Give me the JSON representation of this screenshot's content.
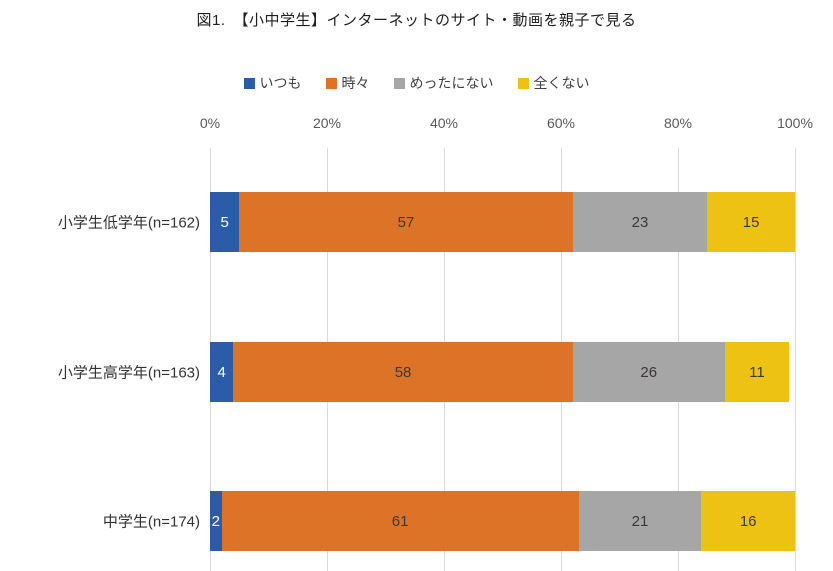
{
  "title": "図1.　【小中学生】インターネットのサイト・動画を親子で見る",
  "chart_data": {
    "type": "bar",
    "variant": "horizontal-stacked",
    "title": "図1.　【小中学生】インターネットのサイト・動画を親子で見る",
    "categories": [
      "小学生低学年(n=162)",
      "小学生高学年(n=163)",
      "中学生(n=174)"
    ],
    "series": [
      {
        "name": "いつも",
        "color": "#2b5ca8",
        "label_color": "#ffffff",
        "values": [
          5,
          4,
          2
        ]
      },
      {
        "name": "時々",
        "color": "#dc7327",
        "label_color": "#3b3838",
        "values": [
          57,
          58,
          61
        ]
      },
      {
        "name": "めったにない",
        "color": "#a6a6a6",
        "label_color": "#3b3838",
        "values": [
          23,
          26,
          21
        ]
      },
      {
        "name": "全くない",
        "color": "#eec213",
        "label_color": "#3b3838",
        "values": [
          15,
          11,
          16
        ]
      }
    ],
    "x_axis": {
      "min": 0,
      "max": 100,
      "ticks": [
        "0%",
        "20%",
        "40%",
        "60%",
        "80%",
        "100%"
      ]
    },
    "legend_position": "top",
    "grid": true,
    "gridline_color": "#d9d9d9",
    "axis_text_color": "#595959"
  }
}
